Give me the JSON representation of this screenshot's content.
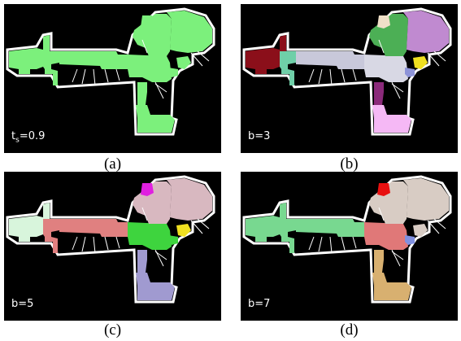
{
  "figure": {
    "panels": [
      {
        "id": "a",
        "caption": "(a)",
        "label_main": "t",
        "label_sub": "s",
        "label_rest": "=0.9",
        "colors": {
          "left_wing": "#7cf07c",
          "corridor_left": "#7cf07c",
          "corridor_mid": "#7cf07c",
          "junction": "#7cf07c",
          "drop_top": "#7cf07c",
          "drop_bottom": "#7cf07c",
          "top_right": "#7cf07c",
          "right_dome": "#7cf07c",
          "small_room": "#7cf07c",
          "yellow_room": "#7cf07c",
          "stub": "#7cf07c"
        }
      },
      {
        "id": "b",
        "caption": "(b)",
        "label_main": "b=3",
        "label_sub": "",
        "label_rest": "",
        "colors": {
          "left_wing": "#8b0f1a",
          "corridor_left": "#6fcfa8",
          "corridor_mid": "#c8c8da",
          "junction": "#d8d8e4",
          "drop_top": "#8b2a7a",
          "drop_bottom": "#f5b8f5",
          "top_right": "#4caf55",
          "right_dome": "#c08ad0",
          "small_room": "#f0e0c8",
          "yellow_room": "#f0e020",
          "stub": "#8e94d8"
        }
      },
      {
        "id": "c",
        "caption": "(c)",
        "label_main": "b=5",
        "label_sub": "",
        "label_rest": "",
        "colors": {
          "left_wing": "#d8f5dc",
          "corridor_left": "#e08080",
          "corridor_mid": "#e08080",
          "junction": "#3ed43e",
          "drop_top": "#a09ad0",
          "drop_bottom": "#a09ad0",
          "top_right": "#d8b8c0",
          "right_dome": "#d8b8c0",
          "small_room": "#e020e0",
          "yellow_room": "#f0e020",
          "stub": "#3ed43e"
        }
      },
      {
        "id": "d",
        "caption": "(d)",
        "label_main": "b=7",
        "label_sub": "",
        "label_rest": "",
        "colors": {
          "left_wing": "#78d890",
          "corridor_left": "#78d890",
          "corridor_mid": "#78d890",
          "junction": "#e07878",
          "drop_top": "#d8b070",
          "drop_bottom": "#d8b070",
          "top_right": "#d8ccc4",
          "right_dome": "#d8ccc4",
          "small_room": "#e81010",
          "yellow_room": "#d8ccc4",
          "stub": "#8090e0"
        }
      }
    ]
  }
}
